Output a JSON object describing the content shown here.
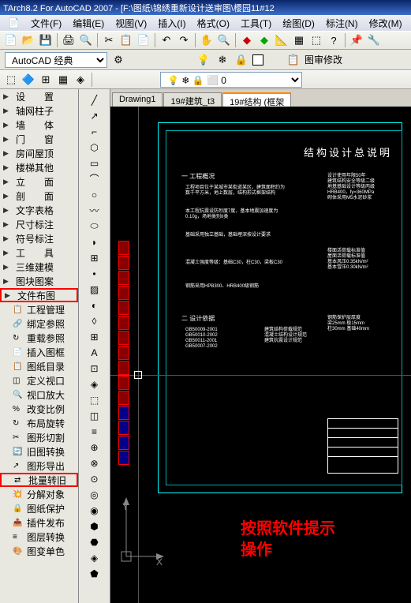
{
  "title": "TArch8.2 For AutoCAD 2007 - [F:\\图纸\\锦绣重新设计送审图\\樱园11#12",
  "menu": {
    "file": "文件(F)",
    "edit": "编辑(E)",
    "view": "视图(V)",
    "insert": "插入(I)",
    "format": "格式(O)",
    "tools": "工具(T)",
    "draw": "绘图(D)",
    "dim": "标注(N)",
    "modify": "修改(M)"
  },
  "workspace": "AutoCAD 经典",
  "toolbar2_label": "图审修改",
  "tabs": {
    "t1": "Drawing1",
    "t2": "19#建筑_t3",
    "t3": "19#结构 (框架"
  },
  "tree": {
    "items": [
      "设　　置",
      "轴网柱子",
      "墙　　体",
      "门　　窗",
      "房间屋顶",
      "楼梯其他",
      "立　　面",
      "剖　　面",
      "文字表格",
      "尺寸标注",
      "符号标注",
      "工　　具",
      "三维建模",
      "图块图案",
      "文件布图",
      "工程管理",
      "绑定参照",
      "重载参照",
      "插入图框",
      "图纸目录",
      "定义视口",
      "视口放大",
      "改变比例",
      "布局旋转",
      "图形切割",
      "旧图转换",
      "图形导出",
      "批量转旧",
      "分解对象",
      "图纸保护",
      "插件发布",
      "图层转换",
      "图变单色"
    ],
    "has_arrow": [
      0,
      1,
      2,
      3,
      4,
      5,
      6,
      7,
      8,
      9,
      10,
      11,
      12,
      13,
      14
    ],
    "highlighted": [
      14,
      27
    ]
  },
  "drawing": {
    "title": "结构设计总说明",
    "section1": "一  工程概况",
    "section2": "二  设计依据",
    "annotation1": "按照软件提示",
    "annotation2": "操作",
    "axis_y": "Y",
    "axis_x": "X"
  },
  "colors": {
    "titlebar": "#0a246a",
    "toolbar": "#e8e8e0",
    "canvas": "#000000",
    "cyan": "#00ffff",
    "red": "#ff0000",
    "white": "#ffffff"
  }
}
